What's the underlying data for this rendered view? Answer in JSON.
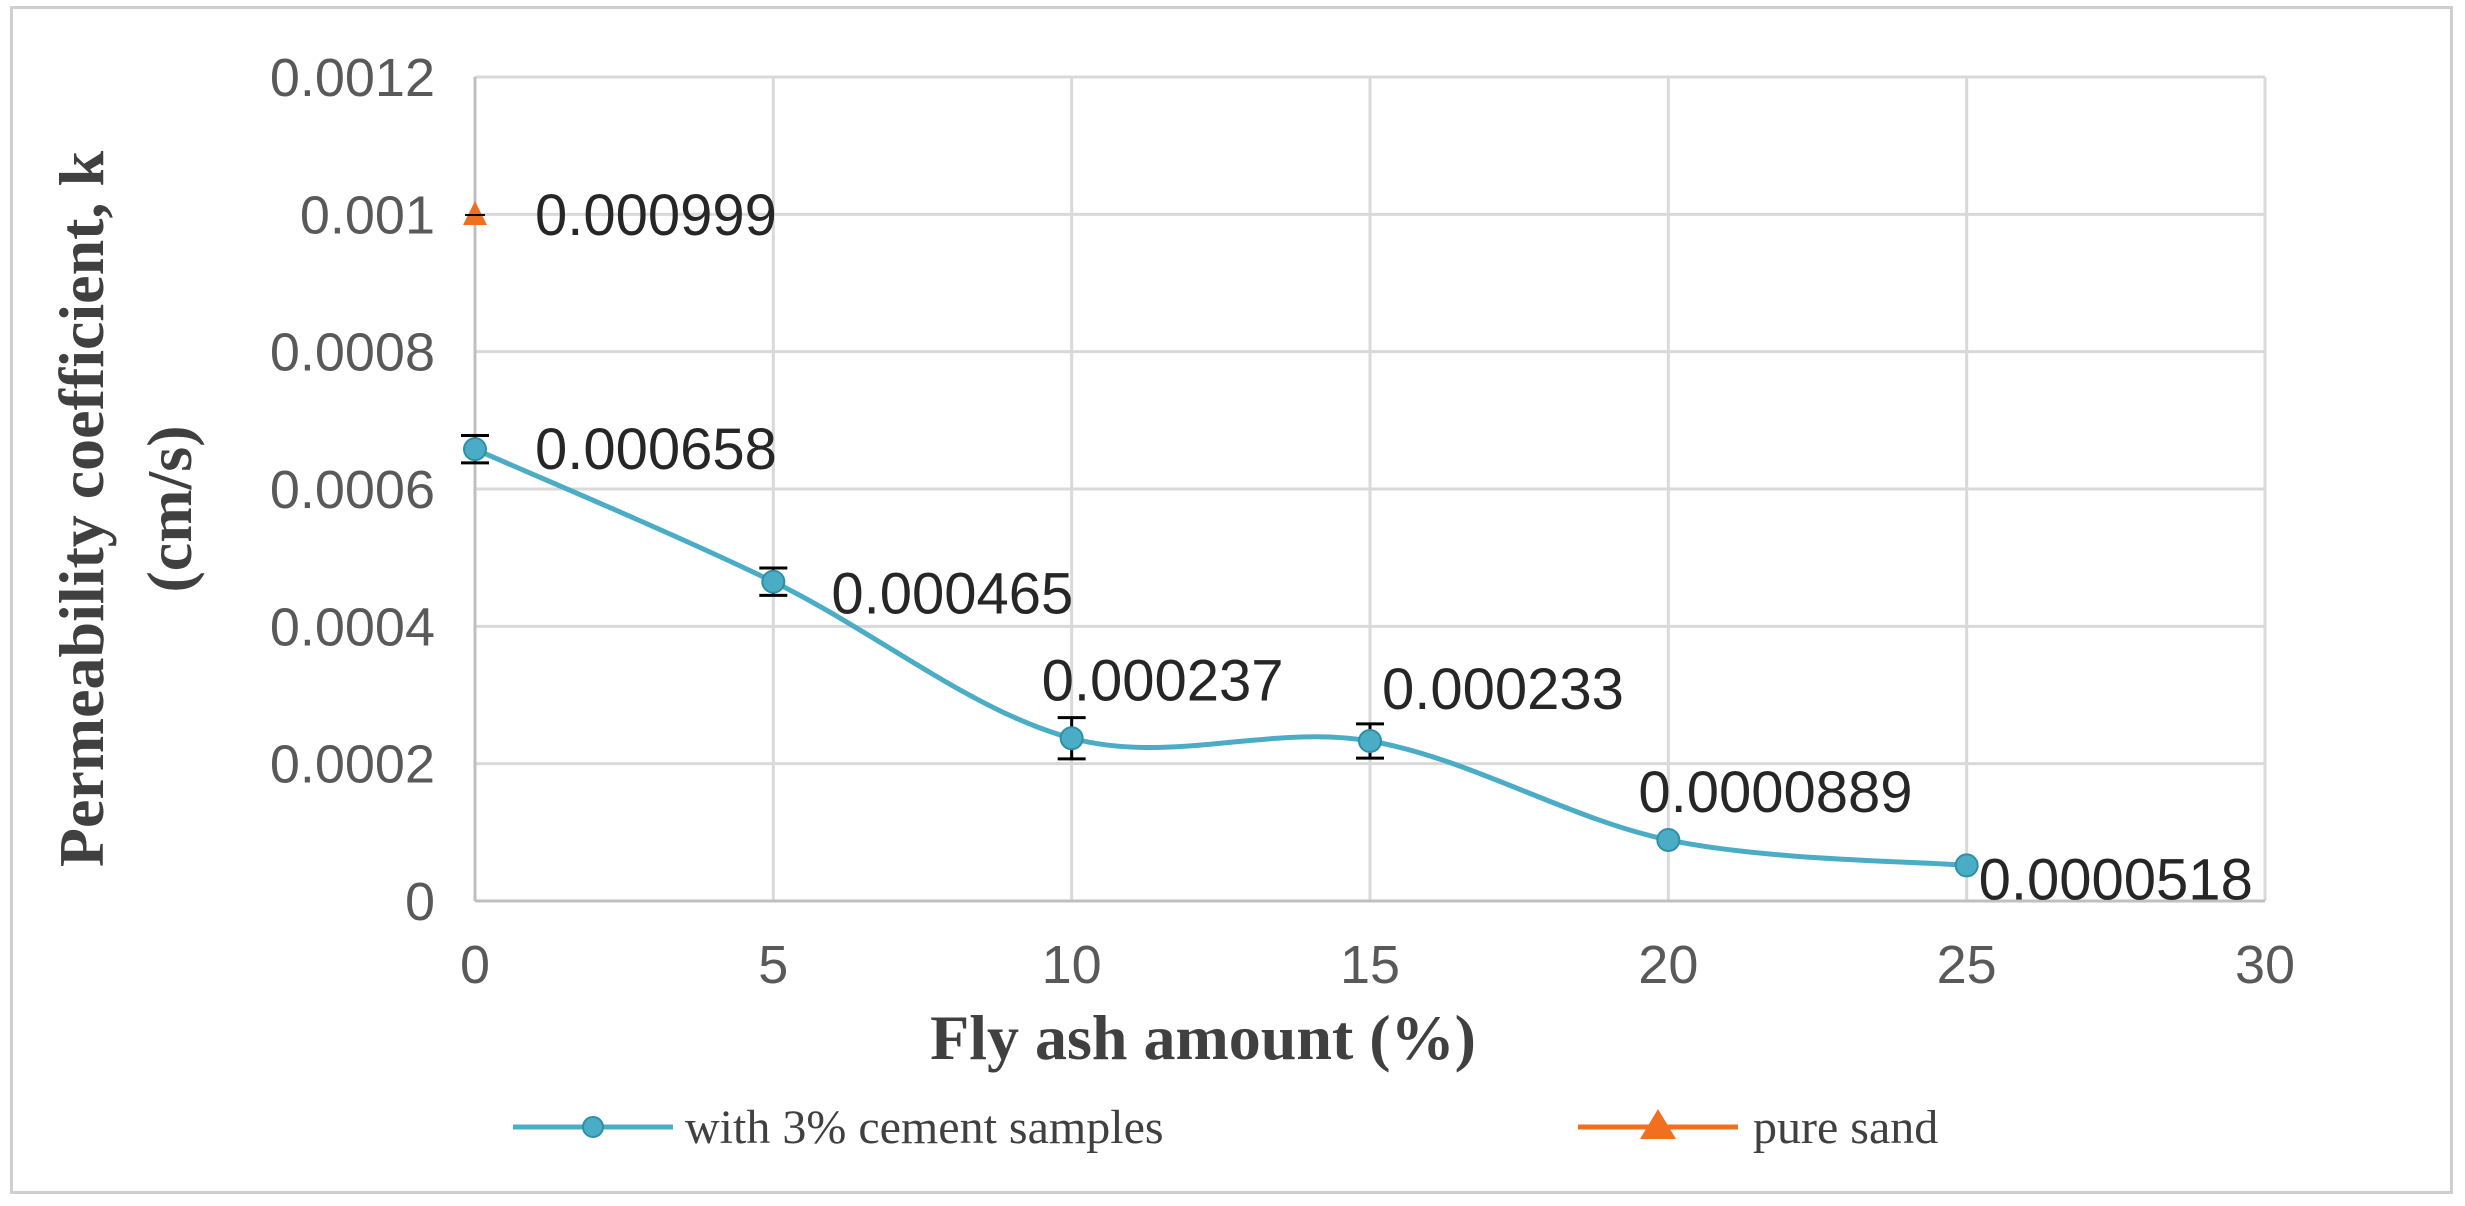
{
  "chart_data": {
    "type": "line",
    "title": "",
    "xlabel": "Fly ash amount (%)",
    "ylabel_lines": [
      "Permeability coefficient, k",
      "(cm/s)"
    ],
    "xlim": [
      0,
      30
    ],
    "ylim": [
      0,
      0.0012
    ],
    "x_ticks": [
      "0",
      "5",
      "10",
      "15",
      "20",
      "25",
      "30"
    ],
    "y_ticks": [
      "0",
      "0.0002",
      "0.0004",
      "0.0006",
      "0.0008",
      "0.001",
      "0.0012"
    ],
    "grid": true,
    "legend_position": "bottom",
    "series": [
      {
        "name": "with 3% cement samples",
        "color": "#4bacc6",
        "marker": "circle",
        "smooth": true,
        "x": [
          0,
          5,
          10,
          15,
          20,
          25
        ],
        "y": [
          0.000658,
          0.000465,
          0.000237,
          0.000233,
          8.89e-05,
          5.18e-05
        ],
        "error": [
          2e-05,
          2e-05,
          3e-05,
          2.5e-05,
          0.0,
          0.0
        ],
        "labels": [
          "0.000658",
          "0.000465",
          "0.000237",
          "0.000233",
          "0.0000889",
          "0.0000518"
        ]
      },
      {
        "name": "pure sand",
        "color": "#f07020",
        "marker": "triangle",
        "smooth": false,
        "x": [
          0
        ],
        "y": [
          0.000999
        ],
        "error": [
          0.0
        ],
        "labels": [
          "0.000999"
        ]
      }
    ]
  }
}
